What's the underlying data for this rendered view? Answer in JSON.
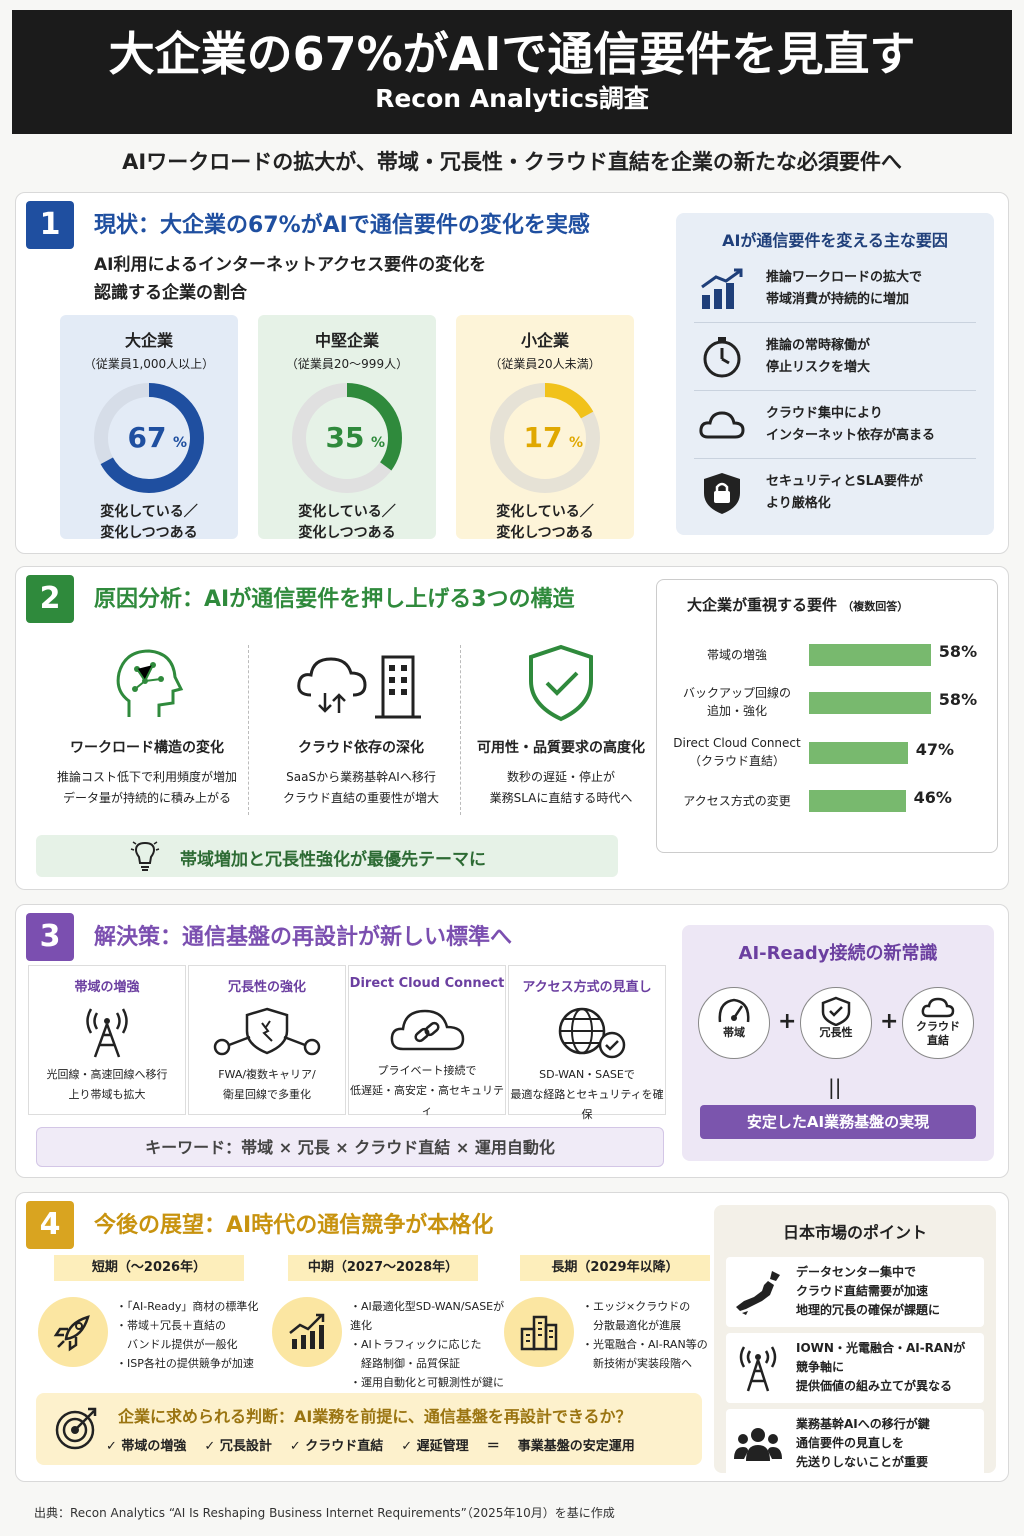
{
  "header": {
    "title": "大企業の67%がAIで通信要件を見直す",
    "subtitle": "Recon Analytics調査"
  },
  "lead": "AIワークロードの拡大が、帯域・冗長性・クラウド直結を企業の新たな必須要件へ",
  "colors": {
    "section1": "#1f4fa0",
    "section2": "#2f8a3c",
    "section3": "#7b4fb0",
    "section4": "#d9a420",
    "donut_large": "#1f4fa0",
    "donut_mid": "#2f8a3c",
    "donut_small": "#f1c21b"
  },
  "section1": {
    "num": "1",
    "title": "現状：大企業の67%がAIで通信要件の変化を実感",
    "desc_line1": "AI利用によるインターネットアクセス要件の変化を",
    "desc_line2": "認識する企業の割合",
    "cards": [
      {
        "title": "大企業",
        "sub": "（従業員1,000人以上）",
        "value": 67,
        "value_text": "67",
        "unit": "%",
        "foot1": "変化している／",
        "foot2": "変化しつつある"
      },
      {
        "title": "中堅企業",
        "sub": "（従業員20〜999人）",
        "value": 35,
        "value_text": "35",
        "unit": "%",
        "foot1": "変化している／",
        "foot2": "変化しつつある"
      },
      {
        "title": "小企業",
        "sub": "（従業員20人未満）",
        "value": 17,
        "value_text": "17",
        "unit": "%",
        "foot1": "変化している／",
        "foot2": "変化しつつある"
      }
    ],
    "factors_title": "AIが通信要件を変える主な要因",
    "factors": [
      {
        "icon": "bar-growth-icon",
        "line1": "推論ワークロードの拡大で",
        "line2": "帯域消費が持続的に増加"
      },
      {
        "icon": "stopwatch-icon",
        "line1": "推論の常時稼働が",
        "line2": "停止リスクを増大"
      },
      {
        "icon": "cloud-icon",
        "line1": "クラウド集中により",
        "line2": "インターネット依存が高まる"
      },
      {
        "icon": "lock-shield-icon",
        "line1": "セキュリティとSLA要件が",
        "line2": "より厳格化"
      }
    ]
  },
  "section2": {
    "num": "2",
    "title": "原因分析：AIが通信要件を押し上げる3つの構造",
    "causes": [
      {
        "icon": "ai-head-icon",
        "title": "ワークロード構造の変化",
        "line1": "推論コスト低下で利用頻度が増加",
        "line2": "データ量が持続的に積み上がる"
      },
      {
        "icon": "cloud-building-icon",
        "title": "クラウド依存の深化",
        "line1": "SaaSから業務基幹AIへ移行",
        "line2": "クラウド直結の重要性が増大"
      },
      {
        "icon": "shield-check-icon",
        "title": "可用性・品質要求の高度化",
        "line1": "数秒の遅延・停止が",
        "line2": "業務SLAに直結する時代へ"
      }
    ],
    "hint": "帯域増加と冗長性強化が最優先テーマに",
    "req_title": "大企業が重視する要件",
    "req_note": "（複数回答）"
  },
  "chart_data": {
    "type": "bar",
    "title": "大企業が重視する要件",
    "categories": [
      [
        "帯域の増強"
      ],
      [
        "バックアップ回線の",
        "追加・強化"
      ],
      [
        "Direct Cloud Connect",
        "（クラウド直結）"
      ],
      [
        "アクセス方式の変更"
      ]
    ],
    "values": [
      58,
      58,
      47,
      46
    ],
    "value_labels": [
      "58%",
      "58%",
      "47%",
      "46%"
    ],
    "xlim": [
      0,
      100
    ]
  },
  "section3": {
    "num": "3",
    "title": "解決策：通信基盤の再設計が新しい標準へ",
    "solutions": [
      {
        "icon": "antenna-tower-icon",
        "title": "帯域の増強",
        "line1": "光回線・高速回線へ移行",
        "line2": "上り帯域も拡大"
      },
      {
        "icon": "redundant-network-icon",
        "title": "冗長性の強化",
        "line1": "FWA/複数キャリア/",
        "line2": "衛星回線で多重化"
      },
      {
        "icon": "cloud-link-icon",
        "title": "Direct Cloud Connect",
        "line1": "プライベート接続で",
        "line2": "低遅延・高安定・高セキュリティ"
      },
      {
        "icon": "globe-check-icon",
        "title": "アクセス方式の見直し",
        "line1": "SD-WAN・SASEで",
        "line2": "最適な経路とセキュリティを確保"
      }
    ],
    "keywords": "キーワード：帯域 × 冗長 × クラウド直結 × 運用自動化",
    "ai_ready_title": "AI-Ready接続の新常識",
    "ai_ready_items": [
      {
        "icon": "gauge-icon",
        "line1": "帯域",
        "line2": ""
      },
      {
        "icon": "shield-check-icon",
        "line1": "冗長性",
        "line2": ""
      },
      {
        "icon": "cloud-icon",
        "line1": "クラウド",
        "line2": "直結"
      }
    ],
    "plus": "+",
    "equals": "||",
    "ai_ready_result": "安定したAI業務基盤の実現"
  },
  "section4": {
    "num": "4",
    "title": "今後の展望：AI時代の通信競争が本格化",
    "phases": [
      {
        "label": "短期（〜2026年）",
        "icon": "rocket-icon",
        "items": [
          "・「AI-Ready」商材の標準化",
          "・帯域＋冗長＋直結の",
          "　バンドル提供が一般化",
          "・ISP各社の提供競争が加速"
        ]
      },
      {
        "label": "中期（2027〜2028年）",
        "icon": "growth-chart-icon",
        "items": [
          "・AI最適化型SD-WAN/SASEが進化",
          "・AIトラフィックに応じた",
          "　経路制御・品質保証",
          "・運用自動化と可観測性が鍵に"
        ]
      },
      {
        "label": "長期（2029年以降）",
        "icon": "city-buildings-icon",
        "items": [
          "・エッジ×クラウドの",
          "　分散最適化が進展",
          "・光電融合・AI-RAN等の",
          "　新技術が実装段階へ"
        ]
      }
    ],
    "decision_title": "企業に求められる判断：AI業務を前提に、通信基盤を再設計できるか？",
    "decision_items": [
      "✓ 帯域の増強",
      "✓ 冗長設計",
      "✓ クラウド直結",
      "✓ 遅延管理",
      "＝",
      "事業基盤の安定運用"
    ],
    "japan_title": "日本市場のポイント",
    "japan_points": [
      {
        "icon": "japan-map-icon",
        "lines": [
          "データセンター集中で",
          "クラウド直結需要が加速",
          "地理的冗長の確保が課題に"
        ]
      },
      {
        "icon": "antenna-icon",
        "lines": [
          "IOWN・光電融合・AI-RANが",
          "競争軸に",
          "提供価値の組み立てが異なる"
        ]
      },
      {
        "icon": "people-icon",
        "lines": [
          "業務基幹AIへの移行が鍵",
          "通信要件の見直しを",
          "先送りしないことが重要"
        ]
      }
    ]
  },
  "footer": "出典：Recon Analytics “AI Is Reshaping Business Internet Requirements”（2025年10月）を基に作成"
}
